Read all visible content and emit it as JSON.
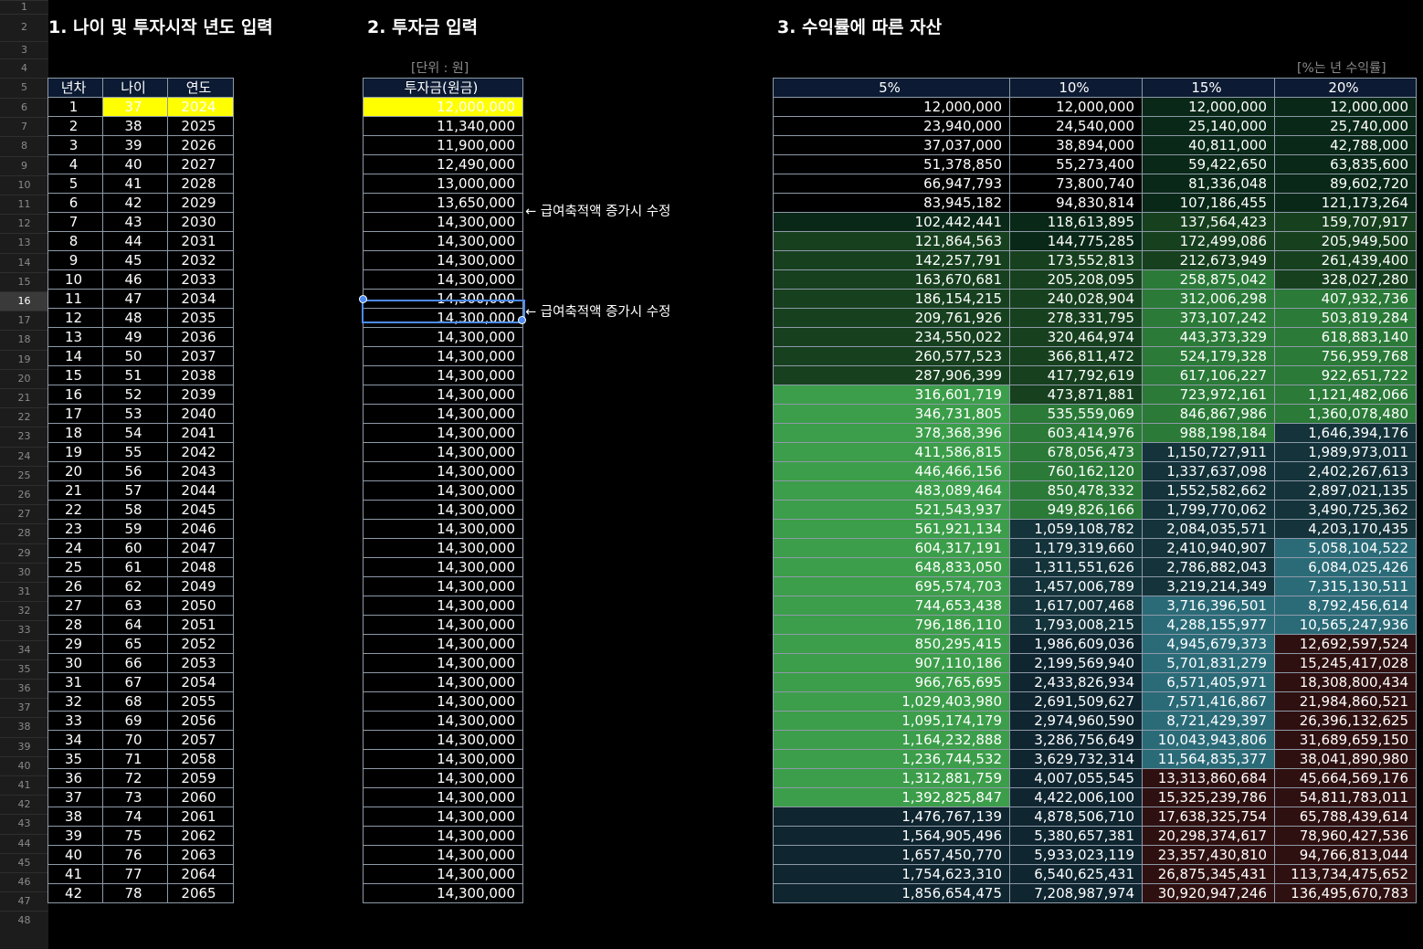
{
  "sections": {
    "s1_title": "1. 나이 및 투자시작 년도 입력",
    "s2_title": "2. 투자금 입력",
    "s3_title": "3. 수익률에 따른 자산"
  },
  "units": {
    "left": "[단위 : 원]",
    "right": "[%는 년 수익률]"
  },
  "table1": {
    "headers": [
      "년차",
      "나이",
      "연도"
    ],
    "rows": [
      [
        "1",
        "37",
        "2024"
      ],
      [
        "2",
        "38",
        "2025"
      ],
      [
        "3",
        "39",
        "2026"
      ],
      [
        "4",
        "40",
        "2027"
      ],
      [
        "5",
        "41",
        "2028"
      ],
      [
        "6",
        "42",
        "2029"
      ],
      [
        "7",
        "43",
        "2030"
      ],
      [
        "8",
        "44",
        "2031"
      ],
      [
        "9",
        "45",
        "2032"
      ],
      [
        "10",
        "46",
        "2033"
      ],
      [
        "11",
        "47",
        "2034"
      ],
      [
        "12",
        "48",
        "2035"
      ],
      [
        "13",
        "49",
        "2036"
      ],
      [
        "14",
        "50",
        "2037"
      ],
      [
        "15",
        "51",
        "2038"
      ],
      [
        "16",
        "52",
        "2039"
      ],
      [
        "17",
        "53",
        "2040"
      ],
      [
        "18",
        "54",
        "2041"
      ],
      [
        "19",
        "55",
        "2042"
      ],
      [
        "20",
        "56",
        "2043"
      ],
      [
        "21",
        "57",
        "2044"
      ],
      [
        "22",
        "58",
        "2045"
      ],
      [
        "23",
        "59",
        "2046"
      ],
      [
        "24",
        "60",
        "2047"
      ],
      [
        "25",
        "61",
        "2048"
      ],
      [
        "26",
        "62",
        "2049"
      ],
      [
        "27",
        "63",
        "2050"
      ],
      [
        "28",
        "64",
        "2051"
      ],
      [
        "29",
        "65",
        "2052"
      ],
      [
        "30",
        "66",
        "2053"
      ],
      [
        "31",
        "67",
        "2054"
      ],
      [
        "32",
        "68",
        "2055"
      ],
      [
        "33",
        "69",
        "2056"
      ],
      [
        "34",
        "70",
        "2057"
      ],
      [
        "35",
        "71",
        "2058"
      ],
      [
        "36",
        "72",
        "2059"
      ],
      [
        "37",
        "73",
        "2060"
      ],
      [
        "38",
        "74",
        "2061"
      ],
      [
        "39",
        "75",
        "2062"
      ],
      [
        "40",
        "76",
        "2063"
      ],
      [
        "41",
        "77",
        "2064"
      ],
      [
        "42",
        "78",
        "2065"
      ]
    ]
  },
  "table2": {
    "header": "투자금(원금)",
    "values": [
      "12,000,000",
      "11,340,000",
      "11,900,000",
      "12,490,000",
      "13,000,000",
      "13,650,000",
      "14,300,000",
      "14,300,000",
      "14,300,000",
      "14,300,000",
      "14,300,000",
      "14,300,000",
      "14,300,000",
      "14,300,000",
      "14,300,000",
      "14,300,000",
      "14,300,000",
      "14,300,000",
      "14,300,000",
      "14,300,000",
      "14,300,000",
      "14,300,000",
      "14,300,000",
      "14,300,000",
      "14,300,000",
      "14,300,000",
      "14,300,000",
      "14,300,000",
      "14,300,000",
      "14,300,000",
      "14,300,000",
      "14,300,000",
      "14,300,000",
      "14,300,000",
      "14,300,000",
      "14,300,000",
      "14,300,000",
      "14,300,000",
      "14,300,000",
      "14,300,000",
      "14,300,000",
      "14,300,000"
    ]
  },
  "notes": {
    "n1": "← 급여축적액 증가시 수정",
    "n2": "← 급여축적액 증가시 수정"
  },
  "table3": {
    "headers": [
      "5%",
      "10%",
      "15%",
      "20%"
    ],
    "rows": [
      [
        "12,000,000",
        "12,000,000",
        "12,000,000",
        "12,000,000"
      ],
      [
        "23,940,000",
        "24,540,000",
        "25,140,000",
        "25,740,000"
      ],
      [
        "37,037,000",
        "38,894,000",
        "40,811,000",
        "42,788,000"
      ],
      [
        "51,378,850",
        "55,273,400",
        "59,422,650",
        "63,835,600"
      ],
      [
        "66,947,793",
        "73,800,740",
        "81,336,048",
        "89,602,720"
      ],
      [
        "83,945,182",
        "94,830,814",
        "107,186,455",
        "121,173,264"
      ],
      [
        "102,442,441",
        "118,613,895",
        "137,564,423",
        "159,707,917"
      ],
      [
        "121,864,563",
        "144,775,285",
        "172,499,086",
        "205,949,500"
      ],
      [
        "142,257,791",
        "173,552,813",
        "212,673,949",
        "261,439,400"
      ],
      [
        "163,670,681",
        "205,208,095",
        "258,875,042",
        "328,027,280"
      ],
      [
        "186,154,215",
        "240,028,904",
        "312,006,298",
        "407,932,736"
      ],
      [
        "209,761,926",
        "278,331,795",
        "373,107,242",
        "503,819,284"
      ],
      [
        "234,550,022",
        "320,464,974",
        "443,373,329",
        "618,883,140"
      ],
      [
        "260,577,523",
        "366,811,472",
        "524,179,328",
        "756,959,768"
      ],
      [
        "287,906,399",
        "417,792,619",
        "617,106,227",
        "922,651,722"
      ],
      [
        "316,601,719",
        "473,871,881",
        "723,972,161",
        "1,121,482,066"
      ],
      [
        "346,731,805",
        "535,559,069",
        "846,867,986",
        "1,360,078,480"
      ],
      [
        "378,368,396",
        "603,414,976",
        "988,198,184",
        "1,646,394,176"
      ],
      [
        "411,586,815",
        "678,056,473",
        "1,150,727,911",
        "1,989,973,011"
      ],
      [
        "446,466,156",
        "760,162,120",
        "1,337,637,098",
        "2,402,267,613"
      ],
      [
        "483,089,464",
        "850,478,332",
        "1,552,582,662",
        "2,897,021,135"
      ],
      [
        "521,543,937",
        "949,826,166",
        "1,799,770,062",
        "3,490,725,362"
      ],
      [
        "561,921,134",
        "1,059,108,782",
        "2,084,035,571",
        "4,203,170,435"
      ],
      [
        "604,317,191",
        "1,179,319,660",
        "2,410,940,907",
        "5,058,104,522"
      ],
      [
        "648,833,050",
        "1,311,551,626",
        "2,786,882,043",
        "6,084,025,426"
      ],
      [
        "695,574,703",
        "1,457,006,789",
        "3,219,214,349",
        "7,315,130,511"
      ],
      [
        "744,653,438",
        "1,617,007,468",
        "3,716,396,501",
        "8,792,456,614"
      ],
      [
        "796,186,110",
        "1,793,008,215",
        "4,288,155,977",
        "10,565,247,936"
      ],
      [
        "850,295,415",
        "1,986,609,036",
        "4,945,679,373",
        "12,692,597,524"
      ],
      [
        "907,110,186",
        "2,199,569,940",
        "5,701,831,279",
        "15,245,417,028"
      ],
      [
        "966,765,695",
        "2,433,826,934",
        "6,571,405,971",
        "18,308,800,434"
      ],
      [
        "1,029,403,980",
        "2,691,509,627",
        "7,571,416,867",
        "21,984,860,521"
      ],
      [
        "1,095,174,179",
        "2,974,960,590",
        "8,721,429,397",
        "26,396,132,625"
      ],
      [
        "1,164,232,888",
        "3,286,756,649",
        "10,043,943,806",
        "31,689,659,150"
      ],
      [
        "1,236,744,532",
        "3,629,732,314",
        "11,564,835,377",
        "38,041,890,980"
      ],
      [
        "1,312,881,759",
        "4,007,055,545",
        "13,313,860,684",
        "45,664,569,176"
      ],
      [
        "1,392,825,847",
        "4,422,006,100",
        "15,325,239,786",
        "54,811,783,011"
      ],
      [
        "1,476,767,139",
        "4,878,506,710",
        "17,638,325,754",
        "65,788,439,614"
      ],
      [
        "1,564,905,496",
        "5,380,657,381",
        "20,298,374,617",
        "78,960,427,536"
      ],
      [
        "1,657,450,770",
        "5,933,023,119",
        "23,357,430,810",
        "94,766,813,044"
      ],
      [
        "1,754,623,310",
        "6,540,625,431",
        "26,875,345,431",
        "113,734,475,652"
      ],
      [
        "1,856,654,475",
        "7,208,987,974",
        "30,920,947,246",
        "136,495,670,783"
      ]
    ]
  },
  "colors": {
    "input_highlight": "#ffff00",
    "header_bg": "#0c1a33",
    "selection": "#4c8bf5",
    "tier_colors": [
      "#000000",
      "#092817",
      "#17401f",
      "#2b7a38",
      "#3c9e4a",
      "#0f2530",
      "#14333a",
      "#2b6b78",
      "#2f1010"
    ]
  }
}
